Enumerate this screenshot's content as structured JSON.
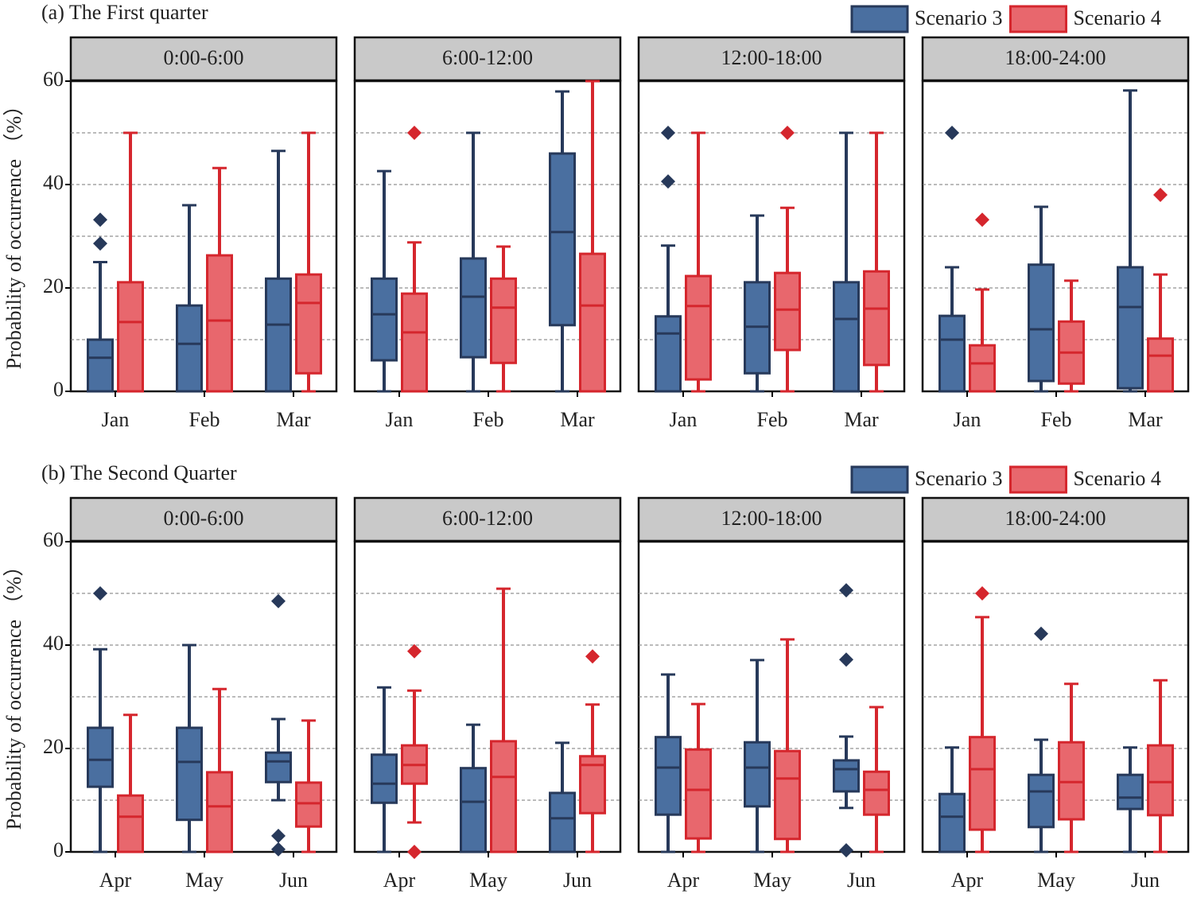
{
  "chart_data": [
    {
      "type": "box",
      "title": "(a) The First quarter",
      "ylabel": "Probability of occurrence （%）",
      "ylim": [
        0,
        60
      ],
      "yticks": [
        0,
        20,
        40,
        60
      ],
      "minor_yticks": [
        10,
        30,
        50
      ],
      "grid": true,
      "categories": [
        "Jan",
        "Feb",
        "Mar"
      ],
      "series": [
        {
          "name": "Scenario 3",
          "color": "#4a6fa0",
          "edge": "#27395a"
        },
        {
          "name": "Scenario 4",
          "color": "#e8676d",
          "edge": "#d5262d"
        }
      ],
      "panels": [
        {
          "title": "0:00-6:00",
          "boxes": [
            [
              {
                "min": 0,
                "q1": 0,
                "median": 6.5,
                "q3": 10,
                "max": 25,
                "outliers": [
                  33.2,
                  28.6
                ]
              },
              {
                "min": 0,
                "q1": 0,
                "median": 9.2,
                "q3": 16.6,
                "max": 36,
                "outliers": []
              },
              {
                "min": 0,
                "q1": 0,
                "median": 12.9,
                "q3": 21.8,
                "max": 46.5,
                "outliers": []
              }
            ],
            [
              {
                "min": 0,
                "q1": 0,
                "median": 13.4,
                "q3": 21.1,
                "max": 50,
                "outliers": []
              },
              {
                "min": 0,
                "q1": 0,
                "median": 13.7,
                "q3": 26.3,
                "max": 43.2,
                "outliers": []
              },
              {
                "min": 0,
                "q1": 3.5,
                "median": 17.1,
                "q3": 22.6,
                "max": 50,
                "outliers": []
              }
            ]
          ]
        },
        {
          "title": "6:00-12:00",
          "boxes": [
            [
              {
                "min": 0,
                "q1": 6,
                "median": 14.9,
                "q3": 21.8,
                "max": 42.6,
                "outliers": []
              },
              {
                "min": 0,
                "q1": 6.6,
                "median": 18.3,
                "q3": 25.7,
                "max": 50,
                "outliers": []
              },
              {
                "min": 0,
                "q1": 12.8,
                "median": 30.8,
                "q3": 46,
                "max": 58,
                "outliers": []
              }
            ],
            [
              {
                "min": 0,
                "q1": 0,
                "median": 11.4,
                "q3": 18.9,
                "max": 28.8,
                "outliers": [
                  50
                ]
              },
              {
                "min": 0,
                "q1": 5.5,
                "median": 16.2,
                "q3": 21.8,
                "max": 28,
                "outliers": []
              },
              {
                "min": 0,
                "q1": 0,
                "median": 16.6,
                "q3": 26.6,
                "max": 60,
                "outliers": []
              }
            ]
          ]
        },
        {
          "title": "12:00-18:00",
          "boxes": [
            [
              {
                "min": 0,
                "q1": 0,
                "median": 11.2,
                "q3": 14.5,
                "max": 28.2,
                "outliers": [
                  50,
                  40.6
                ]
              },
              {
                "min": 0,
                "q1": 3.5,
                "median": 12.5,
                "q3": 21.1,
                "max": 34,
                "outliers": []
              },
              {
                "min": 0,
                "q1": 0,
                "median": 14,
                "q3": 21.1,
                "max": 50,
                "outliers": []
              }
            ],
            [
              {
                "min": 0,
                "q1": 2.3,
                "median": 16.5,
                "q3": 22.3,
                "max": 50,
                "outliers": []
              },
              {
                "min": 0,
                "q1": 8,
                "median": 15.8,
                "q3": 22.9,
                "max": 35.5,
                "outliers": [
                  50
                ]
              },
              {
                "min": 0,
                "q1": 5.1,
                "median": 16,
                "q3": 23.2,
                "max": 50,
                "outliers": []
              }
            ]
          ]
        },
        {
          "title": "18:00-24:00",
          "boxes": [
            [
              {
                "min": 0,
                "q1": 0,
                "median": 10,
                "q3": 14.6,
                "max": 24,
                "outliers": [
                  50
                ]
              },
              {
                "min": 0,
                "q1": 2,
                "median": 12,
                "q3": 24.5,
                "max": 35.7,
                "outliers": []
              },
              {
                "min": 0,
                "q1": 0.6,
                "median": 16.3,
                "q3": 24,
                "max": 58.2,
                "outliers": []
              }
            ],
            [
              {
                "min": 0,
                "q1": 0,
                "median": 5.4,
                "q3": 8.9,
                "max": 19.7,
                "outliers": [
                  33.2
                ]
              },
              {
                "min": 0,
                "q1": 1.5,
                "median": 7.5,
                "q3": 13.5,
                "max": 21.4,
                "outliers": []
              },
              {
                "min": 0,
                "q1": 0,
                "median": 6.9,
                "q3": 10.2,
                "max": 22.6,
                "outliers": [
                  38
                ]
              }
            ]
          ]
        }
      ]
    },
    {
      "type": "box",
      "title": "(b) The Second Quarter",
      "ylabel": "Probability of occurrence （%）",
      "ylim": [
        0,
        60
      ],
      "yticks": [
        0,
        20,
        40,
        60
      ],
      "minor_yticks": [
        10,
        30,
        50
      ],
      "grid": true,
      "categories": [
        "Apr",
        "May",
        "Jun"
      ],
      "series": [
        {
          "name": "Scenario 3",
          "color": "#4a6fa0",
          "edge": "#27395a"
        },
        {
          "name": "Scenario 4",
          "color": "#e8676d",
          "edge": "#d5262d"
        }
      ],
      "panels": [
        {
          "title": "0:00-6:00",
          "boxes": [
            [
              {
                "min": 0,
                "q1": 12.6,
                "median": 17.8,
                "q3": 24,
                "max": 39.2,
                "outliers": [
                  50
                ]
              },
              {
                "min": 0,
                "q1": 6.2,
                "median": 17.4,
                "q3": 24,
                "max": 40,
                "outliers": []
              },
              {
                "min": 10,
                "q1": 13.5,
                "median": 17.5,
                "q3": 19.2,
                "max": 25.7,
                "outliers": [
                  48.5,
                  3.1,
                  0.5
                ]
              }
            ],
            [
              {
                "min": 0,
                "q1": 0,
                "median": 6.8,
                "q3": 10.9,
                "max": 26.5,
                "outliers": []
              },
              {
                "min": 0,
                "q1": 0,
                "median": 8.8,
                "q3": 15.4,
                "max": 31.5,
                "outliers": []
              },
              {
                "min": 0,
                "q1": 4.9,
                "median": 9.4,
                "q3": 13.4,
                "max": 25.4,
                "outliers": []
              }
            ]
          ]
        },
        {
          "title": "6:00-12:00",
          "boxes": [
            [
              {
                "min": 0,
                "q1": 9.5,
                "median": 13.2,
                "q3": 18.8,
                "max": 31.8,
                "outliers": []
              },
              {
                "min": 0,
                "q1": 0,
                "median": 9.7,
                "q3": 16.2,
                "max": 24.6,
                "outliers": []
              },
              {
                "min": 0,
                "q1": 0,
                "median": 6.5,
                "q3": 11.4,
                "max": 21.1,
                "outliers": []
              }
            ],
            [
              {
                "min": 5.7,
                "q1": 13.2,
                "median": 16.8,
                "q3": 20.6,
                "max": 31.2,
                "outliers": [
                  38.8,
                  0
                ]
              },
              {
                "min": 0,
                "q1": 0,
                "median": 14.5,
                "q3": 21.4,
                "max": 50.9,
                "outliers": []
              },
              {
                "min": 0,
                "q1": 7.5,
                "median": 16.8,
                "q3": 18.5,
                "max": 28.5,
                "outliers": [
                  37.8
                ]
              }
            ]
          ]
        },
        {
          "title": "12:00-18:00",
          "boxes": [
            [
              {
                "min": 0,
                "q1": 7.2,
                "median": 16.3,
                "q3": 22.2,
                "max": 34.3,
                "outliers": []
              },
              {
                "min": 0,
                "q1": 8.8,
                "median": 16.3,
                "q3": 21.2,
                "max": 37.1,
                "outliers": []
              },
              {
                "min": 8.5,
                "q1": 11.7,
                "median": 16,
                "q3": 17.7,
                "max": 22.3,
                "outliers": [
                  50.6,
                  37.2,
                  0.3
                ]
              }
            ],
            [
              {
                "min": 0,
                "q1": 2.6,
                "median": 12,
                "q3": 19.8,
                "max": 28.6,
                "outliers": []
              },
              {
                "min": 0,
                "q1": 2.5,
                "median": 14.2,
                "q3": 19.5,
                "max": 41.1,
                "outliers": []
              },
              {
                "min": 0,
                "q1": 7.2,
                "median": 12,
                "q3": 15.5,
                "max": 28,
                "outliers": []
              }
            ]
          ]
        },
        {
          "title": "18:00-24:00",
          "boxes": [
            [
              {
                "min": 0,
                "q1": 0,
                "median": 6.8,
                "q3": 11.2,
                "max": 20.2,
                "outliers": []
              },
              {
                "min": 0,
                "q1": 4.8,
                "median": 11.7,
                "q3": 14.9,
                "max": 21.7,
                "outliers": [
                  42.2
                ]
              },
              {
                "min": 0,
                "q1": 8.3,
                "median": 10.5,
                "q3": 14.9,
                "max": 20.2,
                "outliers": []
              }
            ],
            [
              {
                "min": 0,
                "q1": 4.3,
                "median": 16,
                "q3": 22.2,
                "max": 45.4,
                "outliers": [
                  50
                ]
              },
              {
                "min": 0,
                "q1": 6.3,
                "median": 13.5,
                "q3": 21.2,
                "max": 32.5,
                "outliers": []
              },
              {
                "min": 0,
                "q1": 7.1,
                "median": 13.5,
                "q3": 20.6,
                "max": 33.2,
                "outliers": []
              }
            ]
          ]
        }
      ]
    }
  ]
}
